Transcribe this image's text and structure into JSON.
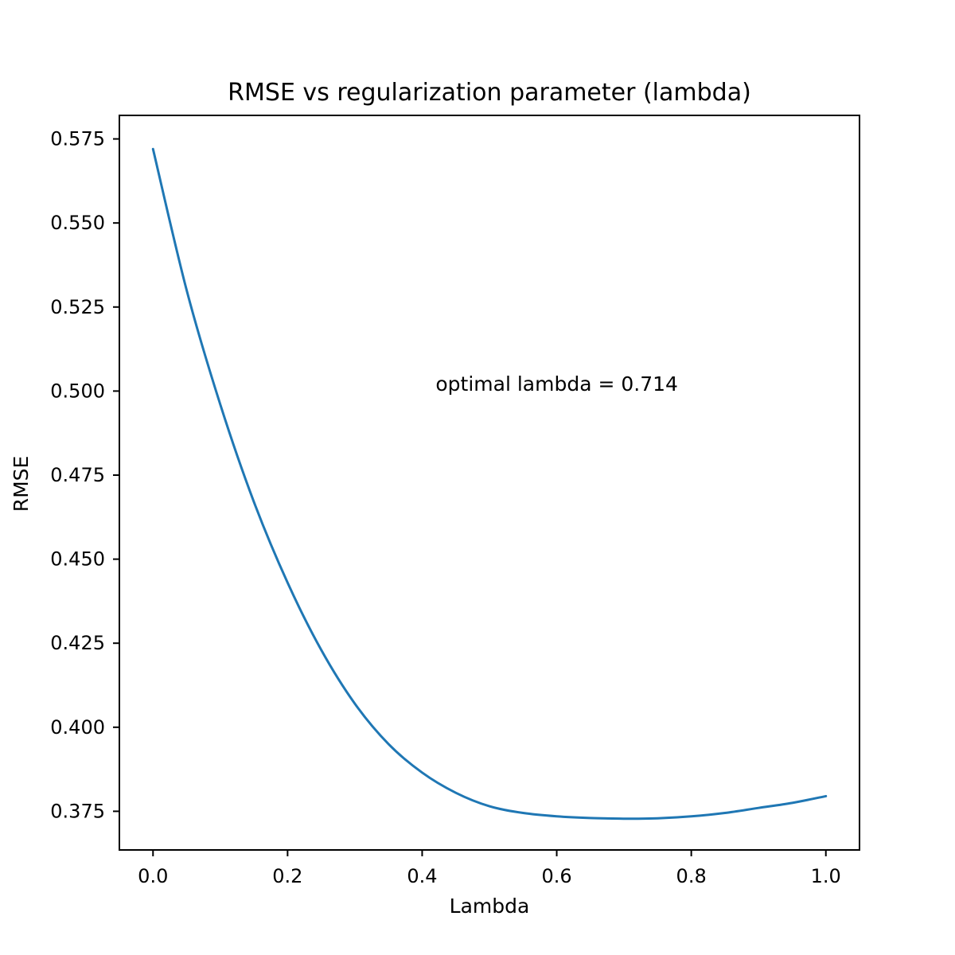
{
  "chart_data": {
    "type": "line",
    "title": "RMSE vs regularization parameter (lambda)",
    "xlabel": "Lambda",
    "ylabel": "RMSE",
    "xlim": [
      -0.05,
      1.05
    ],
    "ylim": [
      0.3635,
      0.582
    ],
    "x_ticks": [
      0.0,
      0.2,
      0.4,
      0.6,
      0.8,
      1.0
    ],
    "x_tick_labels": [
      "0.0",
      "0.2",
      "0.4",
      "0.6",
      "0.8",
      "1.0"
    ],
    "y_ticks": [
      0.375,
      0.4,
      0.425,
      0.45,
      0.475,
      0.5,
      0.525,
      0.55,
      0.575
    ],
    "y_tick_labels": [
      "0.375",
      "0.400",
      "0.425",
      "0.450",
      "0.475",
      "0.500",
      "0.525",
      "0.550",
      "0.575"
    ],
    "grid": false,
    "annotation": {
      "text": "optimal lambda = 0.714",
      "x": 0.42,
      "y": 0.502
    },
    "series": [
      {
        "color": "#1f77b4",
        "x": [
          0.0,
          0.05,
          0.1,
          0.15,
          0.2,
          0.25,
          0.3,
          0.35,
          0.4,
          0.45,
          0.5,
          0.55,
          0.6,
          0.65,
          0.7,
          0.714,
          0.75,
          0.8,
          0.85,
          0.9,
          0.95,
          1.0
        ],
        "values": [
          0.572,
          0.53,
          0.496,
          0.467,
          0.443,
          0.423,
          0.407,
          0.395,
          0.3865,
          0.3805,
          0.3765,
          0.3745,
          0.3735,
          0.373,
          0.3728,
          0.3728,
          0.3729,
          0.3735,
          0.3745,
          0.376,
          0.3775,
          0.3795
        ]
      }
    ]
  }
}
